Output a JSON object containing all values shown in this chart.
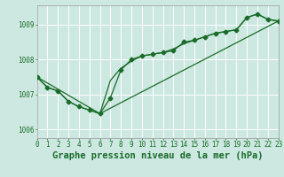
{
  "bg_color": "#cce8e0",
  "grid_color": "#ffffff",
  "line_color": "#1a6b2a",
  "marker_color": "#1a6b2a",
  "title": "Graphe pression niveau de la mer (hPa)",
  "xlim": [
    0,
    23
  ],
  "ylim": [
    1005.75,
    1009.55
  ],
  "yticks": [
    1006,
    1007,
    1008,
    1009
  ],
  "xticks": [
    0,
    1,
    2,
    3,
    4,
    5,
    6,
    7,
    8,
    9,
    10,
    11,
    12,
    13,
    14,
    15,
    16,
    17,
    18,
    19,
    20,
    21,
    22,
    23
  ],
  "series1_x": [
    0,
    1,
    2,
    3,
    4,
    5,
    6,
    7,
    8,
    9,
    10,
    11,
    12,
    13,
    14,
    15,
    16,
    17,
    18,
    19,
    20,
    21,
    22,
    23
  ],
  "series1_y": [
    1007.5,
    1007.2,
    1007.1,
    1006.8,
    1006.65,
    1006.55,
    1006.45,
    1006.9,
    1007.7,
    1008.0,
    1008.1,
    1008.15,
    1008.2,
    1008.25,
    1008.5,
    1008.55,
    1008.65,
    1008.75,
    1008.8,
    1008.85,
    1009.2,
    1009.3,
    1009.15,
    1009.1
  ],
  "series2_x": [
    0,
    1,
    2,
    3,
    4,
    5,
    6,
    7,
    8,
    9,
    10,
    11,
    12,
    13,
    14,
    15,
    16,
    17,
    18,
    19,
    20,
    21,
    22,
    23
  ],
  "series2_y": [
    1007.5,
    1007.2,
    1007.1,
    1006.8,
    1006.65,
    1006.55,
    1006.45,
    1007.4,
    1007.75,
    1007.95,
    1008.1,
    1008.15,
    1008.2,
    1008.3,
    1008.45,
    1008.55,
    1008.65,
    1008.75,
    1008.8,
    1008.85,
    1009.2,
    1009.3,
    1009.15,
    1009.1
  ],
  "series3_x": [
    0,
    6,
    23
  ],
  "series3_y": [
    1007.5,
    1006.45,
    1009.1
  ],
  "marker_size": 2.5,
  "linewidth": 0.9,
  "title_fontsize": 7.5,
  "tick_fontsize": 5.5
}
